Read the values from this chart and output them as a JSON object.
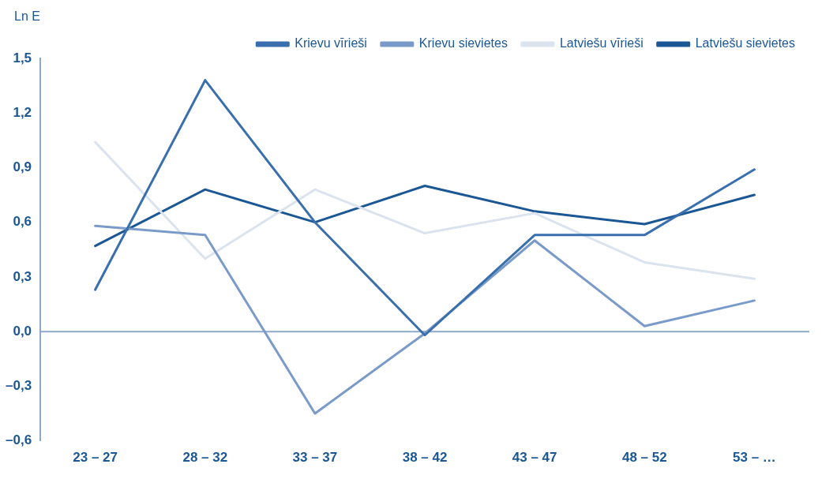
{
  "chart_data": {
    "type": "line",
    "ylabel": "Ln E",
    "categories": [
      "23 – 27",
      "28 – 32",
      "33 – 37",
      "38 – 42",
      "43 – 47",
      "48 – 52",
      "53 – …"
    ],
    "series": [
      {
        "name": "Krievu vīrieši",
        "color": "#3a6fae",
        "values": [
          0.23,
          1.38,
          0.6,
          -0.02,
          0.53,
          0.53,
          0.89
        ]
      },
      {
        "name": "Krievu sievietes",
        "color": "#7a9bc9",
        "values": [
          0.58,
          0.53,
          -0.45,
          -0.01,
          0.5,
          0.03,
          0.17
        ]
      },
      {
        "name": "Latviešu vīrieši",
        "color": "#dbe3ef",
        "values": [
          1.04,
          0.4,
          0.78,
          0.54,
          0.65,
          0.38,
          0.29
        ]
      },
      {
        "name": "Latviešu sievietes",
        "color": "#1b5794",
        "values": [
          0.47,
          0.78,
          0.6,
          0.8,
          0.66,
          0.59,
          0.75
        ]
      }
    ],
    "ylim": [
      -0.6,
      1.5
    ],
    "yticks": [
      {
        "value": -0.6,
        "label": "–0,6"
      },
      {
        "value": -0.3,
        "label": "–0,3"
      },
      {
        "value": 0,
        "label": "0,0"
      },
      {
        "value": 0.3,
        "label": "0,3"
      },
      {
        "value": 0.6,
        "label": "0,6"
      },
      {
        "value": 0.9,
        "label": "0,9"
      },
      {
        "value": 1.2,
        "label": "1,2"
      },
      {
        "value": 1.5,
        "label": "1,5"
      }
    ],
    "ref_lines": [
      {
        "axis": "y",
        "value": 0,
        "color": "#8fa8c8"
      }
    ],
    "grid": false,
    "legend": "top right",
    "marker": "none",
    "line_style": "solid"
  }
}
